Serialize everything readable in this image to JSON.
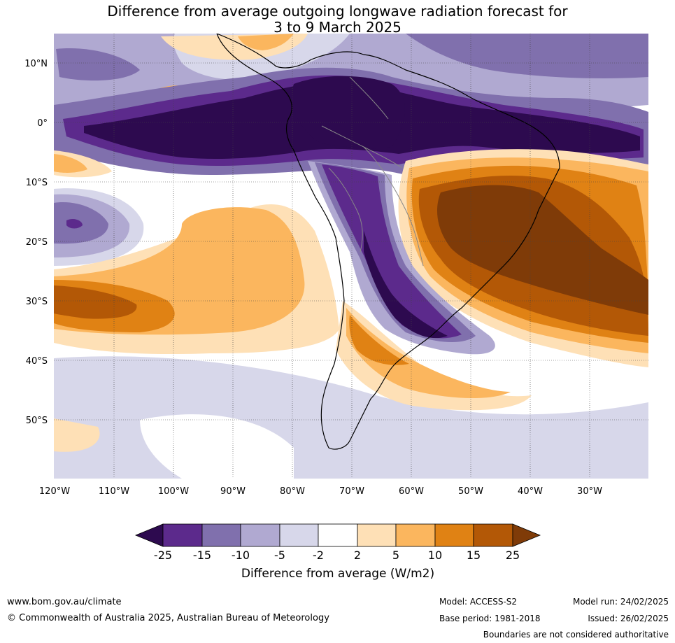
{
  "title_line1": "Difference from average outgoing longwave radiation forecast for",
  "title_line2": "3 to 9 March 2025",
  "map": {
    "lon_labels": [
      "120°W",
      "110°W",
      "100°W",
      "90°W",
      "80°W",
      "70°W",
      "60°W",
      "50°W",
      "40°W",
      "30°W"
    ],
    "lat_labels": [
      "10°N",
      "0°",
      "10°S",
      "20°S",
      "30°S",
      "40°S",
      "50°S"
    ]
  },
  "colorbar": {
    "title": "Difference from average (W/m2)",
    "ticks": [
      "-25",
      "-15",
      "-10",
      "-5",
      "-2",
      "2",
      "5",
      "10",
      "15",
      "25"
    ],
    "colors": {
      "below_-25": "#2d0a4f",
      "-25_-15": "#5c2a8c",
      "-15_-10": "#8070ad",
      "-10_-5": "#b0a9d1",
      "-5_-2": "#d7d7ea",
      "-2_2": "#ffffff",
      "2_5": "#fee0b6",
      "5_10": "#fbb65e",
      "10_15": "#e08214",
      "15_25": "#b35806",
      "above_25": "#7f3b08"
    }
  },
  "footer": {
    "website": "www.bom.gov.au/climate",
    "copyright": "© Commonwealth of Australia 2025, Australian Bureau of Meteorology",
    "model": "Model: ACCESS-S2",
    "base_period": "Base period: 1981-2018",
    "model_run": "Model run: 24/02/2025",
    "issued": "Issued: 26/02/2025",
    "disclaimer": "Boundaries are not considered authoritative"
  }
}
